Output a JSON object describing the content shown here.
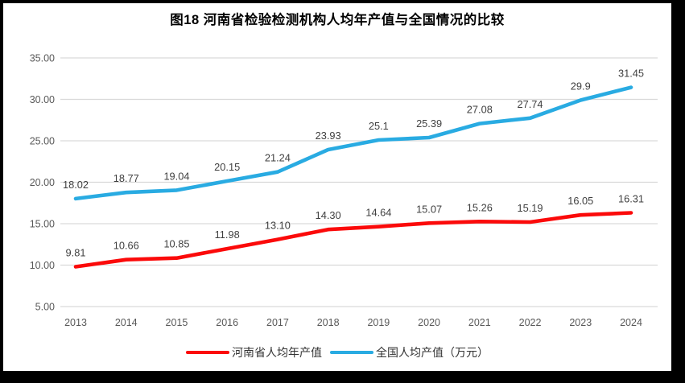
{
  "page": {
    "title": "图18  河南省检验检测机构人均年产值与全国情况的比较"
  },
  "chart_data": {
    "type": "line",
    "title": "图18  河南省检验检测机构人均年产值与全国情况的比较",
    "categories": [
      "2013",
      "2014",
      "2015",
      "2016",
      "2017",
      "2018",
      "2019",
      "2020",
      "2021",
      "2022",
      "2023",
      "2024"
    ],
    "series": [
      {
        "name": "河南省人均年产值",
        "color": "#FB0A0A",
        "values": [
          9.81,
          10.66,
          10.85,
          11.98,
          13.1,
          14.3,
          14.64,
          15.07,
          15.26,
          15.19,
          16.05,
          16.31
        ],
        "labels": [
          "9.81",
          "10.66",
          "10.85",
          "11.98",
          "13.10",
          "14.30",
          "14.64",
          "15.07",
          "15.26",
          "15.19",
          "16.05",
          "16.31"
        ]
      },
      {
        "name": "全国人均产值（万元）",
        "color": "#29ABE2",
        "values": [
          18.02,
          18.77,
          19.04,
          20.15,
          21.24,
          23.93,
          25.1,
          25.39,
          27.08,
          27.74,
          29.9,
          31.45
        ],
        "labels": [
          "18.02",
          "18.77",
          "19.04",
          "20.15",
          "21.24",
          "23.93",
          "25.1",
          "25.39",
          "27.08",
          "27.74",
          "29.9",
          "31.45"
        ]
      }
    ],
    "ylim": [
      5,
      35
    ],
    "ytick_step": 5,
    "ytick_labels": [
      "5.00",
      "10.00",
      "15.00",
      "20.00",
      "25.00",
      "30.00",
      "35.00"
    ],
    "grid": "horizontal",
    "legend_position": "bottom",
    "colors": {
      "grid": "#D9D9D9",
      "axis_text": "#595959",
      "data_label_text": "#3F3F3F",
      "frame": "#000000"
    }
  }
}
